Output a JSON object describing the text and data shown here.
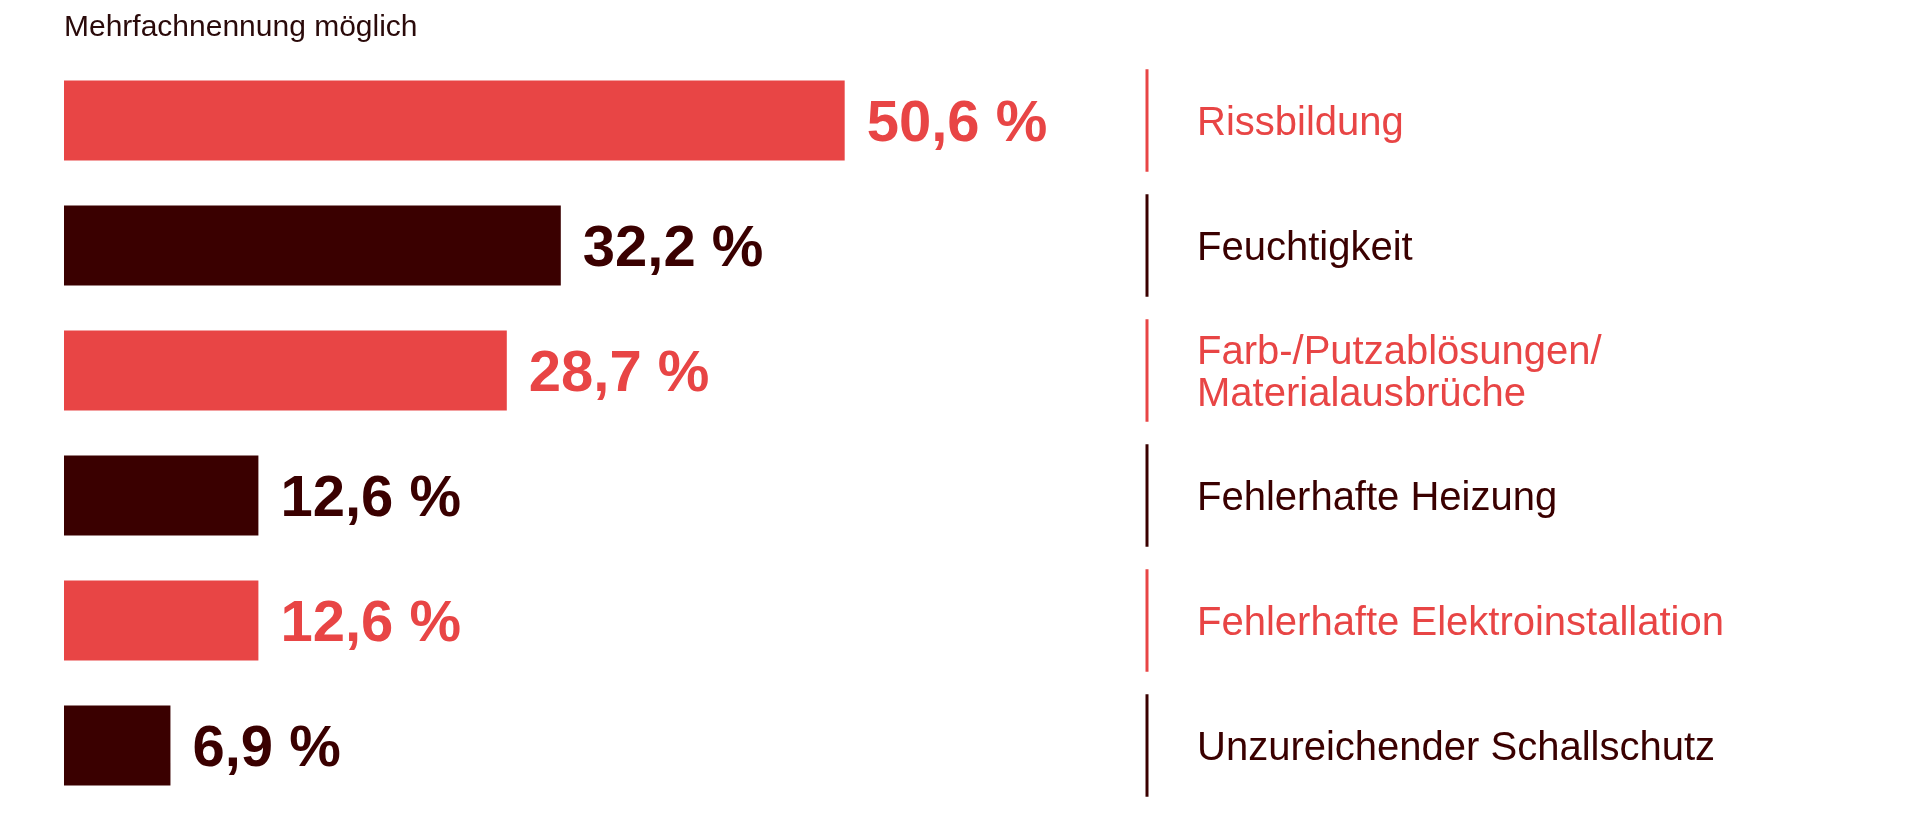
{
  "chart_data": {
    "type": "bar",
    "orientation": "horizontal",
    "subtitle": "Mehrfachnennung möglich",
    "categories": [
      "Rissbildung",
      "Feuchtigkeit",
      "Farb-/Putzablösungen/Materialausbrüche",
      "Fehlerhafte Heizung",
      "Fehlerhafte Elektroinstallation",
      "Unzureichender Schallschutz"
    ],
    "values": [
      50.6,
      32.2,
      28.7,
      12.6,
      12.6,
      6.9
    ],
    "value_labels": [
      "50,6 %",
      "32,2 %",
      "28,7 %",
      "12,6 %",
      "12,6 %",
      "6,9 %"
    ],
    "colors": [
      "#e84545",
      "#3a0000",
      "#e84545",
      "#3a0000",
      "#e84545",
      "#3a0000"
    ]
  }
}
